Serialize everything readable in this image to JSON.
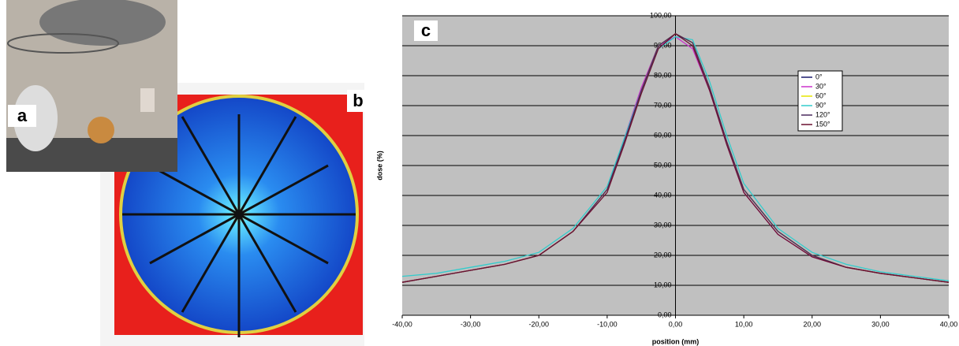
{
  "panel_labels": [
    "a",
    "b",
    "c"
  ],
  "chart_data": {
    "type": "line",
    "x_label": "position (mm)",
    "y_label": "dose (%)",
    "x": [
      -40,
      -35,
      -30,
      -25,
      -20,
      -15,
      -10,
      -7.5,
      -5,
      -2.5,
      0,
      2.5,
      5,
      7.5,
      10,
      15,
      20,
      25,
      30,
      35,
      40
    ],
    "series": [
      {
        "name": "0°",
        "color": "#1a1a6e",
        "values": [
          11,
          13,
          15,
          17,
          20,
          28,
          42,
          58,
          75,
          90,
          94,
          91,
          76,
          58,
          42,
          28,
          20,
          16,
          14,
          12.5,
          11
        ]
      },
      {
        "name": "30°",
        "color": "#cc33cc",
        "values": [
          11,
          13,
          15,
          17,
          20,
          28,
          42,
          59,
          76,
          90,
          93,
          89,
          75,
          57,
          41,
          27,
          19.5,
          16,
          14,
          12.5,
          11
        ]
      },
      {
        "name": "60°",
        "color": "#e6e600",
        "values": [
          11,
          13,
          15,
          17,
          20,
          28,
          42,
          58,
          75,
          90,
          94,
          91,
          76,
          58,
          42,
          28,
          20,
          16,
          14,
          12.5,
          11
        ]
      },
      {
        "name": "90°",
        "color": "#33cccc",
        "values": [
          13,
          14,
          16,
          18,
          21,
          29,
          43,
          59,
          75,
          89,
          93,
          92,
          78,
          60,
          44,
          29,
          21,
          17,
          14.5,
          13,
          11.5
        ]
      },
      {
        "name": "120°",
        "color": "#4b2a5e",
        "values": [
          11,
          13,
          15,
          17,
          20,
          28,
          42,
          58,
          75,
          90,
          94,
          91,
          76,
          58,
          42,
          28,
          20,
          16,
          14,
          12.5,
          11
        ]
      },
      {
        "name": "150°",
        "color": "#6b1030",
        "values": [
          11,
          13,
          15,
          17,
          20,
          28,
          41,
          57,
          74,
          89,
          94,
          90,
          75,
          57,
          41,
          27,
          19.5,
          16,
          14,
          12.5,
          11
        ]
      }
    ],
    "xlim": [
      -40,
      40
    ],
    "xticks": [
      {
        "value": -40,
        "label": "-40,00"
      },
      {
        "value": -30,
        "label": "-30,00"
      },
      {
        "value": -20,
        "label": "-20,00"
      },
      {
        "value": -10,
        "label": "-10,00"
      },
      {
        "value": 0,
        "label": "0,00"
      },
      {
        "value": 10,
        "label": "10,00"
      },
      {
        "value": 20,
        "label": "20,00"
      },
      {
        "value": 30,
        "label": "30,00"
      },
      {
        "value": 40,
        "label": "40,00"
      }
    ],
    "ylim": [
      0,
      100
    ],
    "yticks": [
      {
        "value": 0,
        "label": "0,00"
      },
      {
        "value": 10,
        "label": "10,00"
      },
      {
        "value": 20,
        "label": "20,00"
      },
      {
        "value": 30,
        "label": "30,00"
      },
      {
        "value": 40,
        "label": "40,00"
      },
      {
        "value": 50,
        "label": "50,00"
      },
      {
        "value": 60,
        "label": "60,00"
      },
      {
        "value": 70,
        "label": "70,00"
      },
      {
        "value": 80,
        "label": "80,00"
      },
      {
        "value": 90,
        "label": "90,00"
      },
      {
        "value": 100,
        "label": "100,00"
      }
    ],
    "grid": true
  }
}
